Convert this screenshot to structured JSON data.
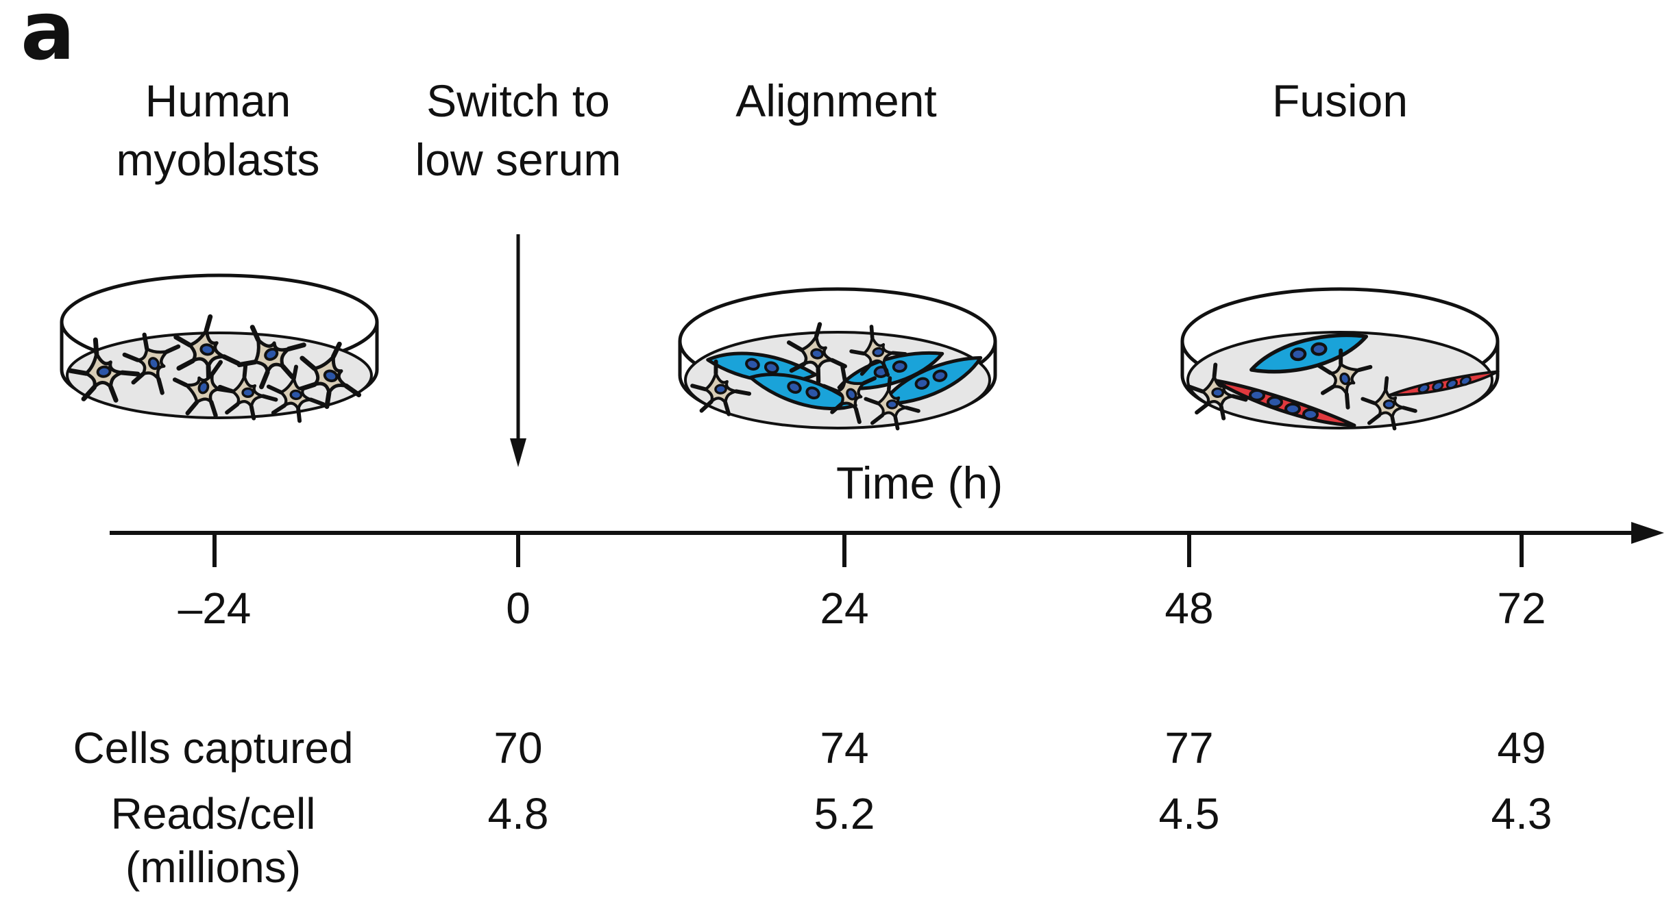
{
  "panel_label": "a",
  "stages": [
    {
      "lines": [
        "Human",
        "myoblasts"
      ]
    },
    {
      "lines": [
        "Switch to",
        "low serum"
      ]
    },
    {
      "lines": [
        "Alignment"
      ]
    },
    {
      "lines": [
        "Fusion"
      ]
    }
  ],
  "axis_title": "Time (h)",
  "ticks": [
    {
      "label": "–24"
    },
    {
      "label": "0"
    },
    {
      "label": "24"
    },
    {
      "label": "48"
    },
    {
      "label": "72"
    }
  ],
  "table": {
    "cells_label": "Cells captured",
    "reads_label_line1": "Reads/cell",
    "reads_label_line2": "(millions)",
    "cells_values": [
      "70",
      "74",
      "77",
      "49"
    ],
    "reads_values": [
      "4.8",
      "5.2",
      "4.5",
      "4.3"
    ]
  },
  "colors": {
    "line": "#111111",
    "dish_fill": "#e6e6e6",
    "myoblast_fill": "#d8cdb6",
    "aligned_cell_fill": "#1aa3d9",
    "fused_cell_fill": "#e0393e",
    "nucleus_fill": "#2c56a8"
  }
}
